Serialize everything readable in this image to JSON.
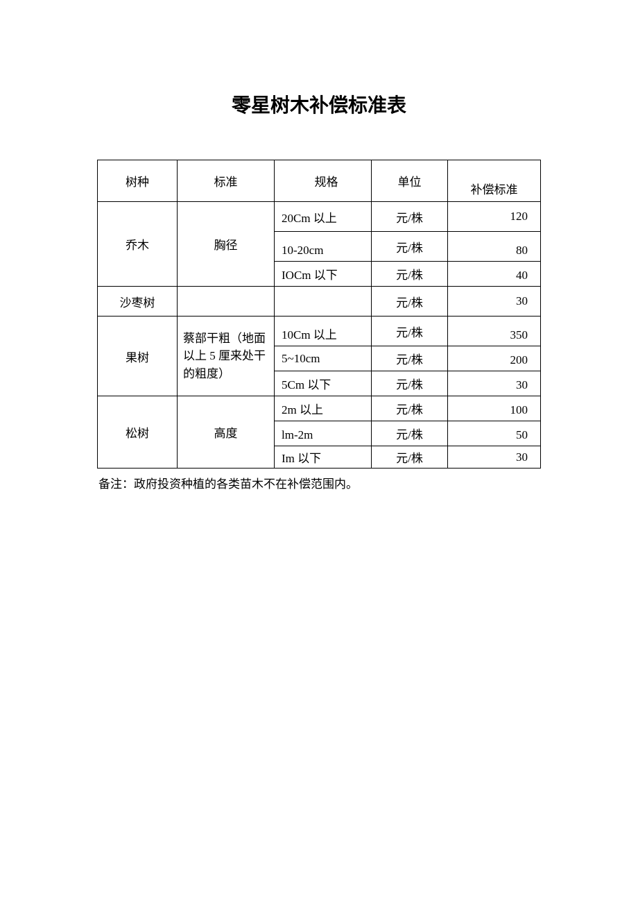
{
  "title": "零星树木补偿标准表",
  "headers": {
    "col1": "树种",
    "col2": "标准",
    "col3": "规格",
    "col4": "单位",
    "col5": "补偿标准"
  },
  "groups": [
    {
      "species": "乔木",
      "standard": "胸径",
      "rows": [
        {
          "spec": "20Cm 以上",
          "unit": "元/株",
          "value": "120"
        },
        {
          "spec": "10-20cm",
          "unit": "元/株",
          "value": "80"
        },
        {
          "spec": "IOCm 以下",
          "unit": "元/株",
          "value": "40"
        }
      ]
    },
    {
      "species": "沙枣树",
      "standard": "",
      "rows": [
        {
          "spec": "",
          "unit": "元/株",
          "value": "30"
        }
      ]
    },
    {
      "species": "果树",
      "standard": "蔡部干粗（地面以上 5 厘来处干的粗度）",
      "rows": [
        {
          "spec": "10Cm 以上",
          "unit": "元/株",
          "value": "350"
        },
        {
          "spec": "5~10cm",
          "unit": "元/株",
          "value": "200"
        },
        {
          "spec": "5Cm 以下",
          "unit": "元/株",
          "value": "30"
        }
      ]
    },
    {
      "species": "松树",
      "standard": "高度",
      "rows": [
        {
          "spec": "2m 以上",
          "unit": "元/株",
          "value": "100"
        },
        {
          "spec": "lm-2m",
          "unit": "元/株",
          "value": "50"
        },
        {
          "spec": "Im 以下",
          "unit": "元/株",
          "value": "30"
        }
      ]
    }
  ],
  "note": "备注：政府投资种植的各类苗木不在补偿范围内。"
}
